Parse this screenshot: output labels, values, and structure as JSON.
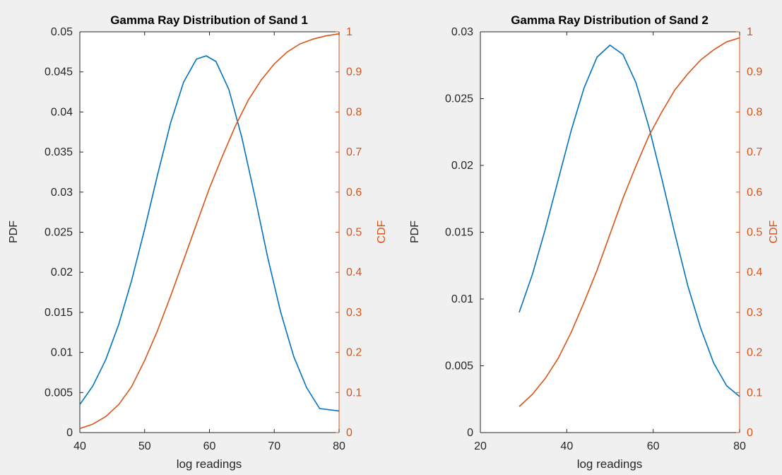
{
  "window": {
    "background": "#f0f0f0"
  },
  "colors": {
    "pdf": "#0072bd",
    "cdf": "#d95319",
    "axis": "#262626",
    "plot_bg": "#ffffff"
  },
  "chart_data": [
    {
      "type": "line",
      "title": "Gamma Ray Distribution of Sand 1",
      "xlabel": "log readings",
      "ylabel_left": "PDF",
      "ylabel_right": "CDF",
      "xlim": [
        40,
        80
      ],
      "ylim_left": [
        0,
        0.05
      ],
      "ylim_right": [
        0,
        1
      ],
      "xticks": [
        "40",
        "50",
        "60",
        "70",
        "80"
      ],
      "yticks_left": [
        "0",
        "0.005",
        "0.01",
        "0.015",
        "0.02",
        "0.025",
        "0.03",
        "0.035",
        "0.04",
        "0.045",
        "0.05"
      ],
      "yticks_right": [
        "0",
        "0.1",
        "0.2",
        "0.3",
        "0.4",
        "0.5",
        "0.6",
        "0.7",
        "0.8",
        "0.9",
        "1"
      ],
      "series": [
        {
          "axis": "left",
          "x": [
            40,
            42,
            44,
            46,
            48,
            50,
            52,
            54,
            56,
            58,
            59.5,
            61,
            63,
            65,
            67,
            69,
            71,
            73,
            75,
            77,
            80
          ],
          "y": [
            0.0035,
            0.0058,
            0.0091,
            0.0135,
            0.019,
            0.0254,
            0.0322,
            0.0386,
            0.0437,
            0.0466,
            0.047,
            0.0463,
            0.0428,
            0.0368,
            0.0295,
            0.0218,
            0.015,
            0.0095,
            0.0056,
            0.003,
            0.0027
          ]
        },
        {
          "axis": "right",
          "x": [
            40,
            42,
            44,
            46,
            48,
            50,
            52,
            54,
            56,
            58,
            60,
            62,
            64,
            66,
            68,
            70,
            72,
            74,
            76,
            78,
            80
          ],
          "y": [
            0.01,
            0.021,
            0.04,
            0.07,
            0.115,
            0.18,
            0.255,
            0.34,
            0.43,
            0.52,
            0.61,
            0.69,
            0.765,
            0.83,
            0.88,
            0.92,
            0.95,
            0.97,
            0.982,
            0.99,
            0.995
          ]
        }
      ]
    },
    {
      "type": "line",
      "title": "Gamma Ray Distribution of Sand 2",
      "xlabel": "log readings",
      "ylabel_left": "PDF",
      "ylabel_right": "CDF",
      "xlim": [
        20,
        80
      ],
      "ylim_left": [
        0,
        0.03
      ],
      "ylim_right": [
        0,
        1
      ],
      "xticks": [
        "20",
        "40",
        "60",
        "80"
      ],
      "yticks_left": [
        "0",
        "0.005",
        "0.01",
        "0.015",
        "0.02",
        "0.025",
        "0.03"
      ],
      "yticks_right": [
        "0",
        "0.1",
        "0.2",
        "0.3",
        "0.4",
        "0.5",
        "0.6",
        "0.7",
        "0.8",
        "0.9",
        "1"
      ],
      "series": [
        {
          "axis": "left",
          "x": [
            29,
            32,
            35,
            38,
            41,
            44,
            47,
            50,
            53,
            56,
            59,
            62,
            65,
            68,
            71,
            74,
            77,
            80
          ],
          "y": [
            0.009,
            0.0118,
            0.0152,
            0.0189,
            0.0226,
            0.0258,
            0.0281,
            0.029,
            0.0283,
            0.0262,
            0.0229,
            0.019,
            0.0149,
            0.011,
            0.0078,
            0.0052,
            0.0035,
            0.0027
          ]
        },
        {
          "axis": "right",
          "x": [
            29,
            32,
            35,
            38,
            41,
            44,
            47,
            50,
            53,
            56,
            59,
            62,
            65,
            68,
            71,
            74,
            77,
            80
          ],
          "y": [
            0.065,
            0.095,
            0.135,
            0.185,
            0.25,
            0.325,
            0.405,
            0.495,
            0.585,
            0.665,
            0.74,
            0.8,
            0.855,
            0.895,
            0.93,
            0.955,
            0.975,
            0.985
          ]
        }
      ]
    }
  ]
}
